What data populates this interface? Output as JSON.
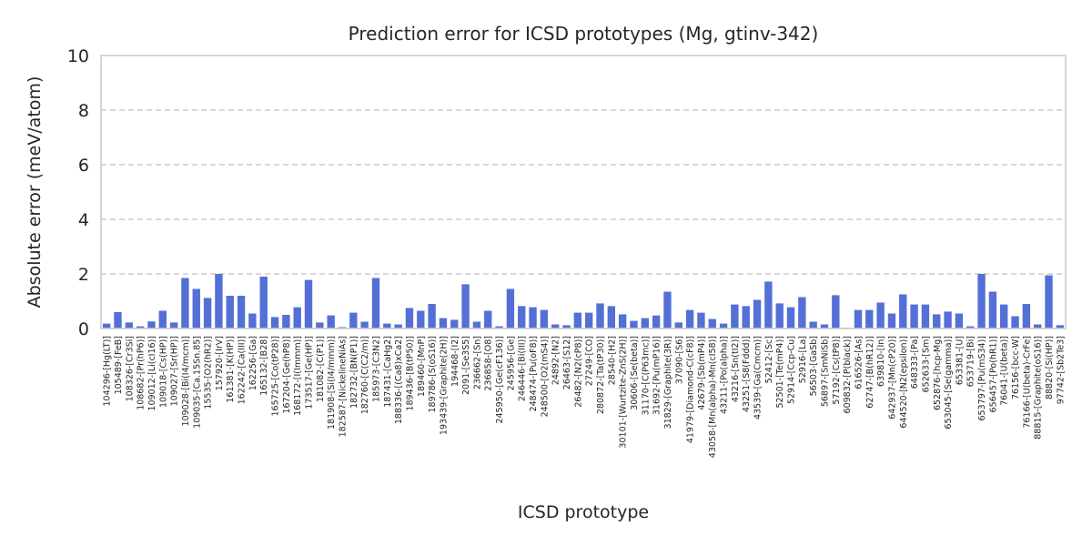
{
  "chart_data": {
    "type": "bar",
    "title": "Prediction error for ICSD prototypes (Mg, gtinv-342)",
    "xlabel": "ICSD prototype",
    "ylabel": "Absolute error (meV/atom)",
    "ylim": [
      0,
      10
    ],
    "yticks": [
      0,
      2,
      4,
      6,
      8,
      10
    ],
    "grid": "y-dashed",
    "bar_color": "#5470d6",
    "categories": [
      "104296-[Hg(LT)]",
      "105489-[FeB]",
      "108326-[Cr3Si]",
      "108682-[Pr(hP6)]",
      "109012-[Li(cI16)]",
      "109018-[Cs(HP)]",
      "109027-[Sr(HP)]",
      "109028-[Bi(I4/mcm)]",
      "109035-[Ca.15Sn.85]",
      "15535-[O2(hR2)]",
      "157920-[IrV]",
      "161381-[K(HP)]",
      "162242-[Ca(III)]",
      "162256-[Ga]",
      "165132-[B28]",
      "165725-[Co(tP28)]",
      "167204-[Ge(hP8)]",
      "168172-[I(Immm)]",
      "173517-[Ge(HP)]",
      "181082-[C(P1)]",
      "181908-[Si(I4/mmm)]",
      "182587-[NickelineNiAs]",
      "182732-[BN(P1)]",
      "182760-[C(C2/m)]",
      "185973-[C3N2]",
      "187431-[CaHg2]",
      "188336-[(Ca8)xCa2]",
      "189436-[B(tP50)]",
      "189460-[MnP]",
      "189786-[S(oS16)]",
      "193439-[Graphite(2H)]",
      "194468-[I2]",
      "2091-[Se3S5]",
      "236662-[Sn]",
      "236858-[O8]",
      "245950-[Ge(cF136)]",
      "245956-[Ge]",
      "246446-[Bi(III)]",
      "248474-[Pu(oF8)]",
      "248500-[O2(mS4)]",
      "24892-[N2]",
      "26463-[S12]",
      "26482-[N2(cP8)]",
      "27249-[CO]",
      "280872-[Ta(tP30)]",
      "28540-[H2]",
      "30101-[Wurtzite-ZnS(2H)]",
      "30606-[Se(beta)]",
      "31170-[C(P63mc)]",
      "31692-[Pu(mP16)]",
      "31829-[Graphite(3R)]",
      "37090-[S6]",
      "41979-[Diamond-C(cF8)]",
      "42679-[Sb(mP4)]",
      "43058-[Mn(alpha)-Mn(cI58)]",
      "43211-[Po(alpha)]",
      "43216-[Sn(tI2)]",
      "43251-[S8(Fddd)]",
      "43539-[Ga(Cmcm)]",
      "52412-[Sc]",
      "52501-[Te(mP4)]",
      "52914-[Ccp-Cu]",
      "52916-[La]",
      "56503-[GaSb]",
      "56897-[SmNiSb]",
      "57192-[Cs(tP8)]",
      "609832-[P(black)]",
      "616526-[As]",
      "62747-[B(hR12)]",
      "639810-[In]",
      "642937-[Mn(cP20)]",
      "644520-[N2(epsilon)]",
      "648333-[Pa]",
      "652633-[Sm]",
      "652876-[hcp-Mg]",
      "653045-[Se(gamma)]",
      "653381-[U]",
      "653719-[Bi]",
      "653797-[Pu(mS34)]",
      "656457-[Po(hR1)]",
      "76041-[U(beta)]",
      "76156-[bcc-W]",
      "76166-[U(beta)-CrFe]",
      "88815-[Graphite(oS16)]",
      "88820-[Si(HP)]",
      "97742-[Sb2Te3]"
    ],
    "values": [
      0.18,
      0.6,
      0.22,
      0.08,
      0.26,
      0.65,
      0.22,
      1.85,
      1.45,
      1.12,
      2.0,
      1.2,
      1.2,
      0.55,
      1.9,
      0.42,
      0.5,
      0.78,
      1.78,
      0.22,
      0.48,
      0.05,
      0.58,
      0.25,
      1.85,
      0.18,
      0.15,
      0.75,
      0.65,
      0.9,
      0.38,
      0.32,
      1.62,
      0.25,
      0.65,
      0.08,
      1.45,
      0.82,
      0.78,
      0.68,
      0.15,
      0.12,
      0.58,
      0.58,
      0.92,
      0.82,
      0.52,
      0.28,
      0.38,
      0.48,
      1.35,
      0.22,
      0.68,
      0.58,
      0.35,
      0.18,
      0.88,
      0.82,
      1.05,
      1.72,
      0.92,
      0.78,
      1.15,
      0.25,
      0.15,
      1.22,
      0.03,
      0.68,
      0.68,
      0.95,
      0.55,
      1.25,
      0.88,
      0.88,
      0.52,
      0.62,
      0.55,
      0.08,
      2.0,
      1.35,
      0.88,
      0.45,
      0.9,
      0.15,
      1.95,
      0.12
    ]
  }
}
